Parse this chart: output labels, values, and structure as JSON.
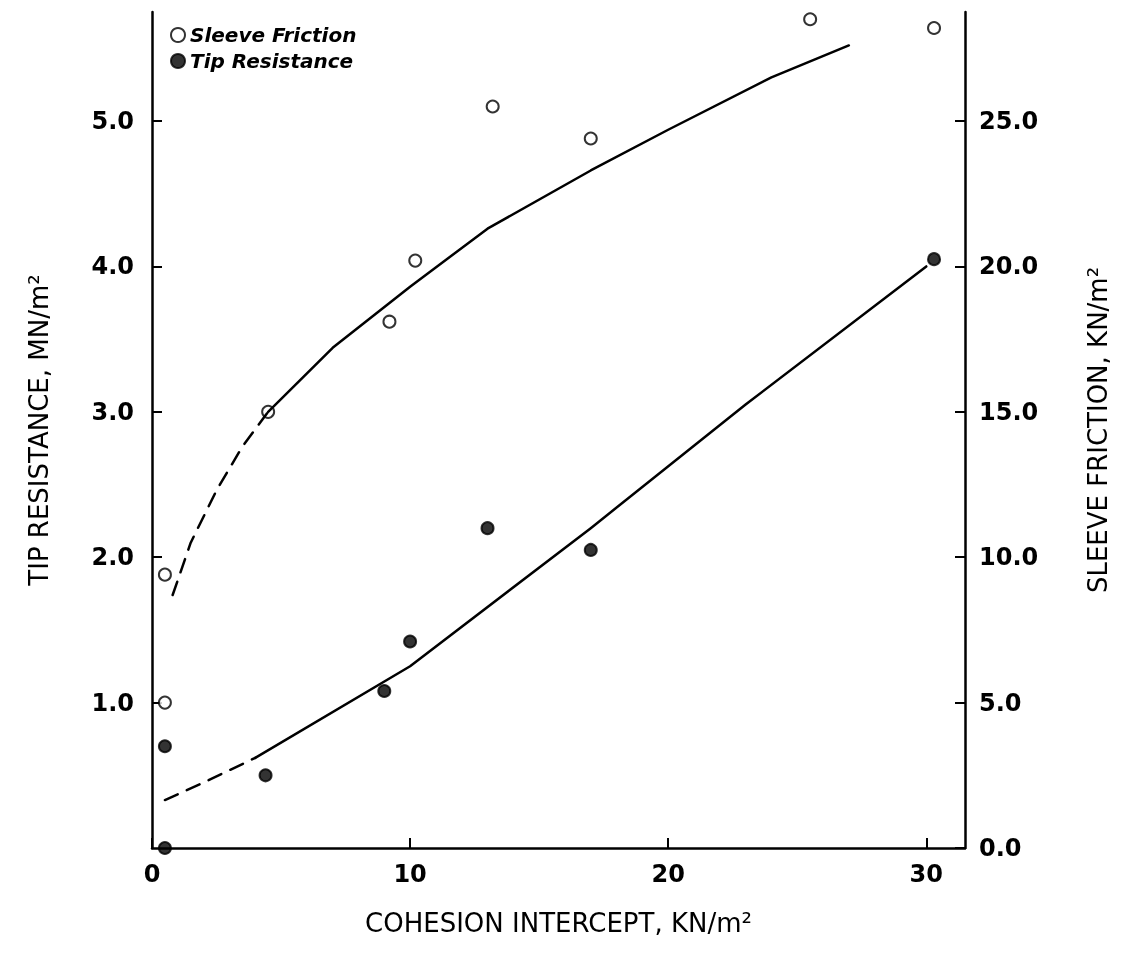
{
  "chart_data": {
    "type": "scatter",
    "xlabel": "COHESION INTERCEPT, KN/m²",
    "ylabel": "TIP RESISTANCE, MN/m²",
    "y2label": "SLEEVE FRICTION, KN/m²",
    "xlim": [
      0,
      31.5
    ],
    "xticks": [
      0,
      10,
      20,
      30
    ],
    "ylim": [
      0,
      5.75
    ],
    "yticks": [
      {
        "value": 1,
        "label": "1.0"
      },
      {
        "value": 2,
        "label": "2.0"
      },
      {
        "value": 3,
        "label": "3.0"
      },
      {
        "value": 4,
        "label": "4.0"
      },
      {
        "value": 5,
        "label": "5.0"
      }
    ],
    "y2lim": [
      0,
      28.75
    ],
    "y2ticks": [
      {
        "value": 0,
        "label": "0.0"
      },
      {
        "value": 5,
        "label": "5.0"
      },
      {
        "value": 10,
        "label": "10.0"
      },
      {
        "value": 15,
        "label": "15.0"
      },
      {
        "value": 20,
        "label": "20.0"
      },
      {
        "value": 25,
        "label": "25.0"
      }
    ],
    "grid": false,
    "legend": "top left",
    "series": [
      {
        "name": "Sleeve Friction",
        "axis": "y2",
        "marker": "circle",
        "color": "#ffffff",
        "x": [
          0.5,
          0.5,
          4.5,
          9.2,
          10.2,
          13.2,
          17,
          25.5,
          30.3
        ],
        "values": [
          5.0,
          9.4,
          15.0,
          18.1,
          20.2,
          25.5,
          24.4,
          28.5,
          28.2
        ]
      },
      {
        "name": "Tip Resistance",
        "marker": "circle",
        "color": "#000000",
        "x": [
          0.5,
          0.5,
          4.4,
          9,
          10,
          13,
          17,
          30.3
        ],
        "values": [
          0.0,
          0.7,
          0.5,
          1.08,
          1.42,
          2.2,
          2.05,
          4.05
        ]
      },
      {
        "type": "line",
        "axis": "y2",
        "line_style": "dashed",
        "marker": "none",
        "color": "#000000",
        "x": [
          0.8,
          1.5,
          2.5,
          3.5,
          4.5
        ],
        "values": [
          8.7,
          10.5,
          12.3,
          13.8,
          15.0
        ]
      },
      {
        "type": "line",
        "axis": "y2",
        "line_style": "solid",
        "marker": "none",
        "color": "#000000",
        "x": [
          4.5,
          7,
          10,
          13,
          17,
          20,
          24,
          27
        ],
        "values": [
          15.0,
          17.2,
          19.3,
          21.3,
          23.3,
          24.7,
          26.5,
          27.6
        ]
      },
      {
        "type": "line",
        "line_style": "dashed",
        "marker": "none",
        "color": "#000000",
        "x": [
          0.5,
          2,
          4
        ],
        "values": [
          0.33,
          0.45,
          0.62
        ]
      },
      {
        "type": "line",
        "line_style": "solid",
        "marker": "none",
        "color": "#000000",
        "x": [
          4,
          10,
          17,
          23,
          30
        ],
        "values": [
          0.62,
          1.25,
          2.2,
          3.05,
          4.0
        ]
      }
    ]
  }
}
